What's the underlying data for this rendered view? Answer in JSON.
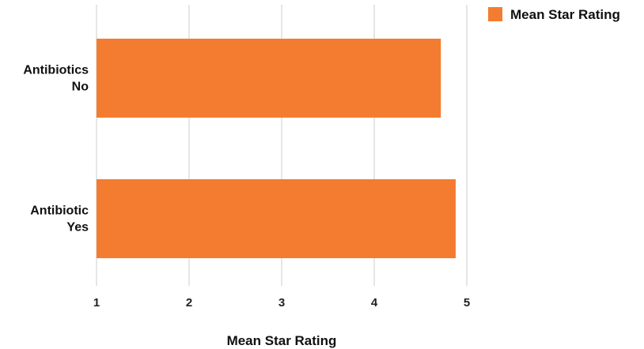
{
  "chart_data": {
    "type": "bar",
    "orientation": "horizontal",
    "categories": [
      [
        "Antibiotics",
        "No"
      ],
      [
        "Antibiotic",
        "Yes"
      ]
    ],
    "series": [
      {
        "name": "Mean Star Rating",
        "values": [
          4.72,
          4.88
        ],
        "color": "#f47c30"
      }
    ],
    "xlabel": "Mean Star Rating",
    "xlim": [
      1,
      5
    ],
    "xticks": [
      "1",
      "2",
      "3",
      "4",
      "5"
    ],
    "grid": true,
    "legend": "top-right"
  }
}
